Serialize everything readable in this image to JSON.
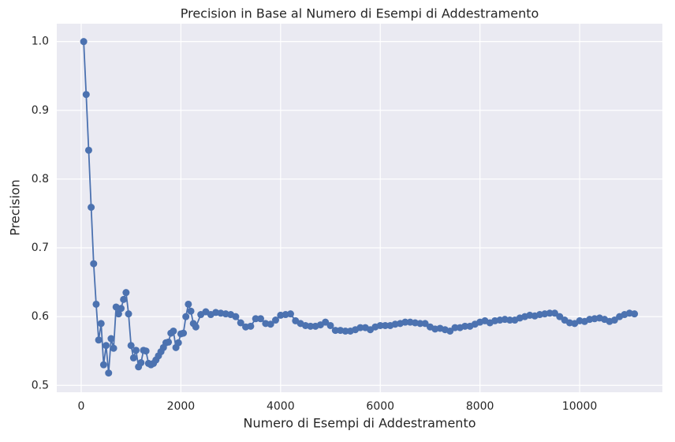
{
  "chart_data": {
    "type": "line",
    "title": "Precision in Base al Numero di Esempi di Addestramento",
    "x_label": "Numero di Esempi di Addestramento",
    "y_label": "Precision",
    "xlim": [
      -490,
      11660
    ],
    "ylim": [
      0.49,
      1.026
    ],
    "xticks": [
      0,
      2000,
      4000,
      6000,
      8000,
      10000
    ],
    "yticks": [
      {
        "value": 0.5,
        "label": "0.5"
      },
      {
        "value": 0.6,
        "label": "0.6"
      },
      {
        "value": 0.7,
        "label": "0.7"
      },
      {
        "value": 0.8,
        "label": "0.8"
      },
      {
        "value": 0.9,
        "label": "0.9"
      },
      {
        "value": 1.0,
        "label": "1.0"
      }
    ],
    "grid": true,
    "color": "#4c72b0",
    "series": [
      {
        "color": "#4c72b0",
        "x": [
          50,
          100,
          150,
          200,
          250,
          300,
          350,
          400,
          450,
          500,
          550,
          600,
          650,
          700,
          750,
          800,
          850,
          900,
          950,
          1000,
          1050,
          1100,
          1150,
          1200,
          1250,
          1300,
          1350,
          1400,
          1450,
          1500,
          1550,
          1600,
          1650,
          1700,
          1750,
          1800,
          1850,
          1900,
          1950,
          2000,
          2050,
          2100,
          2150,
          2200,
          2250,
          2300,
          2400,
          2500,
          2600,
          2700,
          2800,
          2900,
          3000,
          3100,
          3200,
          3300,
          3400,
          3500,
          3600,
          3700,
          3800,
          3900,
          4000,
          4100,
          4200,
          4300,
          4400,
          4500,
          4600,
          4700,
          4800,
          4900,
          5000,
          5100,
          5200,
          5300,
          5400,
          5500,
          5600,
          5700,
          5800,
          5900,
          6000,
          6100,
          6200,
          6300,
          6400,
          6500,
          6600,
          6700,
          6800,
          6900,
          7000,
          7100,
          7200,
          7300,
          7400,
          7500,
          7600,
          7700,
          7800,
          7900,
          8000,
          8100,
          8200,
          8300,
          8400,
          8500,
          8600,
          8700,
          8800,
          8900,
          9000,
          9100,
          9200,
          9300,
          9400,
          9500,
          9600,
          9700,
          9800,
          9900,
          10000,
          10100,
          10200,
          10300,
          10400,
          10500,
          10600,
          10700,
          10800,
          10900,
          11000,
          11100
        ],
        "values": [
          1.0,
          0.923,
          0.842,
          0.759,
          0.677,
          0.618,
          0.566,
          0.59,
          0.53,
          0.558,
          0.518,
          0.568,
          0.554,
          0.614,
          0.604,
          0.612,
          0.625,
          0.635,
          0.604,
          0.558,
          0.54,
          0.551,
          0.527,
          0.533,
          0.551,
          0.55,
          0.532,
          0.53,
          0.532,
          0.537,
          0.543,
          0.549,
          0.555,
          0.562,
          0.563,
          0.576,
          0.579,
          0.555,
          0.562,
          0.575,
          0.576,
          0.6,
          0.618,
          0.608,
          0.59,
          0.585,
          0.603,
          0.607,
          0.603,
          0.606,
          0.605,
          0.604,
          0.603,
          0.6,
          0.591,
          0.585,
          0.586,
          0.597,
          0.597,
          0.59,
          0.589,
          0.595,
          0.602,
          0.603,
          0.604,
          0.594,
          0.59,
          0.587,
          0.586,
          0.586,
          0.588,
          0.592,
          0.587,
          0.58,
          0.58,
          0.579,
          0.579,
          0.581,
          0.584,
          0.584,
          0.581,
          0.585,
          0.587,
          0.587,
          0.587,
          0.589,
          0.59,
          0.592,
          0.592,
          0.591,
          0.59,
          0.59,
          0.585,
          0.582,
          0.583,
          0.581,
          0.579,
          0.584,
          0.584,
          0.586,
          0.586,
          0.589,
          0.592,
          0.594,
          0.591,
          0.594,
          0.595,
          0.596,
          0.595,
          0.595,
          0.598,
          0.6,
          0.602,
          0.601,
          0.603,
          0.604,
          0.605,
          0.605,
          0.6,
          0.595,
          0.591,
          0.59,
          0.594,
          0.593,
          0.596,
          0.597,
          0.598,
          0.596,
          0.593,
          0.595,
          0.6,
          0.603,
          0.605,
          0.604
        ]
      }
    ]
  }
}
